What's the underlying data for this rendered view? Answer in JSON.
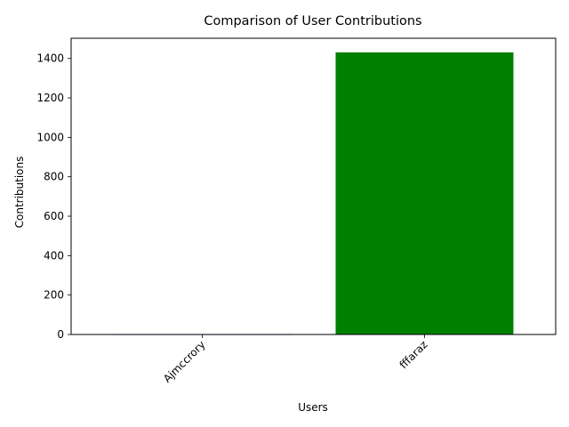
{
  "chart_data": {
    "type": "bar",
    "title": "Comparison of User Contributions",
    "xlabel": "Users",
    "ylabel": "Contributions",
    "categories": [
      "Ajmccrory",
      "fffaraz"
    ],
    "values": [
      2,
      1431
    ],
    "colors": [
      "#0000ff",
      "#008000"
    ],
    "yticks": [
      0,
      200,
      400,
      600,
      800,
      1000,
      1200,
      1400
    ],
    "ylim": [
      0,
      1502.55
    ],
    "xtick_rotation": 45,
    "grid": false,
    "legend": "none"
  }
}
